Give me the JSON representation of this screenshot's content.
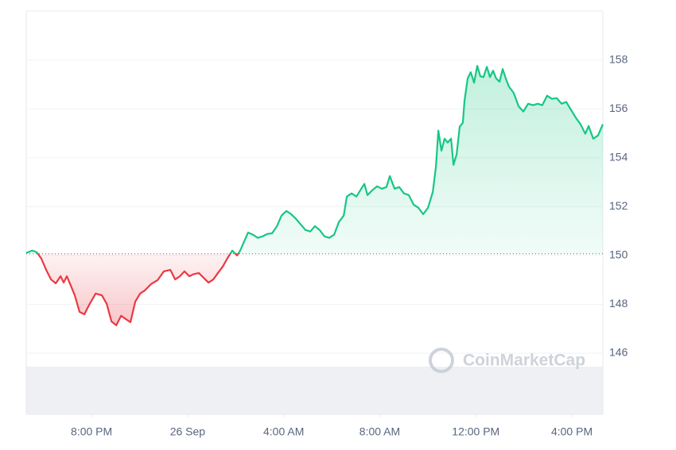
{
  "chart_data": {
    "type": "line",
    "x": [
      -2.72,
      -2.48,
      -2.28,
      -2.09,
      -1.89,
      -1.69,
      -1.49,
      -1.29,
      -1.16,
      -1.03,
      -0.89,
      -0.7,
      -0.5,
      -0.3,
      -0.1,
      0.17,
      0.43,
      0.63,
      0.83,
      1.03,
      1.23,
      1.42,
      1.62,
      1.82,
      2.02,
      2.22,
      2.48,
      2.75,
      3.01,
      3.28,
      3.48,
      3.68,
      3.87,
      4.07,
      4.27,
      4.47,
      4.67,
      4.87,
      5.07,
      5.26,
      5.46,
      5.66,
      5.86,
      6.06,
      6.19,
      6.39,
      6.52,
      6.72,
      6.92,
      7.12,
      7.32,
      7.52,
      7.72,
      7.91,
      8.11,
      8.31,
      8.51,
      8.71,
      8.91,
      9.11,
      9.3,
      9.5,
      9.7,
      9.9,
      10.1,
      10.3,
      10.5,
      10.63,
      10.83,
      11.03,
      11.23,
      11.36,
      11.49,
      11.69,
      11.89,
      12.09,
      12.28,
      12.42,
      12.62,
      12.81,
      13.01,
      13.21,
      13.41,
      13.61,
      13.81,
      14.01,
      14.21,
      14.34,
      14.44,
      14.57,
      14.7,
      14.83,
      14.97,
      15.07,
      15.2,
      15.33,
      15.46,
      15.53,
      15.66,
      15.79,
      15.93,
      16.06,
      16.19,
      16.32,
      16.46,
      16.59,
      16.72,
      16.85,
      16.99,
      17.12,
      17.25,
      17.38,
      17.58,
      17.78,
      17.98,
      18.18,
      18.38,
      18.58,
      18.77,
      18.97,
      19.17,
      19.37,
      19.57,
      19.77,
      19.97,
      20.17,
      20.36,
      20.56,
      20.7,
      20.89,
      21.09,
      21.29
    ],
    "series": [
      {
        "color": "#16c784",
        "below_color": "#ea3943",
        "values": [
          150.1,
          150.2,
          150.13,
          149.87,
          149.41,
          149.02,
          148.86,
          149.15,
          148.89,
          149.15,
          148.83,
          148.37,
          147.69,
          147.59,
          147.98,
          148.44,
          148.37,
          148.02,
          147.3,
          147.14,
          147.53,
          147.4,
          147.27,
          148.11,
          148.44,
          148.57,
          148.83,
          148.99,
          149.35,
          149.41,
          149.02,
          149.15,
          149.35,
          149.15,
          149.24,
          149.28,
          149.08,
          148.89,
          149.02,
          149.28,
          149.54,
          149.89,
          150.2,
          150.0,
          150.2,
          150.65,
          150.94,
          150.85,
          150.72,
          150.78,
          150.88,
          150.91,
          151.2,
          151.63,
          151.82,
          151.69,
          151.5,
          151.27,
          151.04,
          150.98,
          151.2,
          151.04,
          150.78,
          150.72,
          150.85,
          151.37,
          151.63,
          152.41,
          152.54,
          152.41,
          152.73,
          152.93,
          152.47,
          152.67,
          152.83,
          152.73,
          152.8,
          153.25,
          152.73,
          152.8,
          152.54,
          152.47,
          152.08,
          151.95,
          151.69,
          151.95,
          152.6,
          153.64,
          155.11,
          154.29,
          154.78,
          154.62,
          154.78,
          153.71,
          154.13,
          155.27,
          155.43,
          156.33,
          157.24,
          157.5,
          157.07,
          157.76,
          157.33,
          157.3,
          157.72,
          157.3,
          157.56,
          157.24,
          157.11,
          157.63,
          157.24,
          156.91,
          156.65,
          156.11,
          155.89,
          156.21,
          156.15,
          156.21,
          156.15,
          156.54,
          156.41,
          156.44,
          156.21,
          156.28,
          155.95,
          155.63,
          155.37,
          154.98,
          155.3,
          154.78,
          154.91,
          155.37
        ]
      }
    ],
    "baseline": 150.07,
    "xlim": [
      -2.72,
      21.29
    ],
    "xticks": [
      {
        "value": 0,
        "label": "8:00 PM"
      },
      {
        "value": 4,
        "label": "26 Sep"
      },
      {
        "value": 8,
        "label": "4:00 AM"
      },
      {
        "value": 12,
        "label": "8:00 AM"
      },
      {
        "value": 16,
        "label": "12:00 PM"
      },
      {
        "value": 20,
        "label": "4:00 PM"
      }
    ],
    "ylim": [
      143.5,
      160
    ],
    "yticks": [
      146,
      148,
      150,
      152,
      154,
      156,
      158
    ],
    "grid": true,
    "watermark": "CoinMarketCap"
  }
}
